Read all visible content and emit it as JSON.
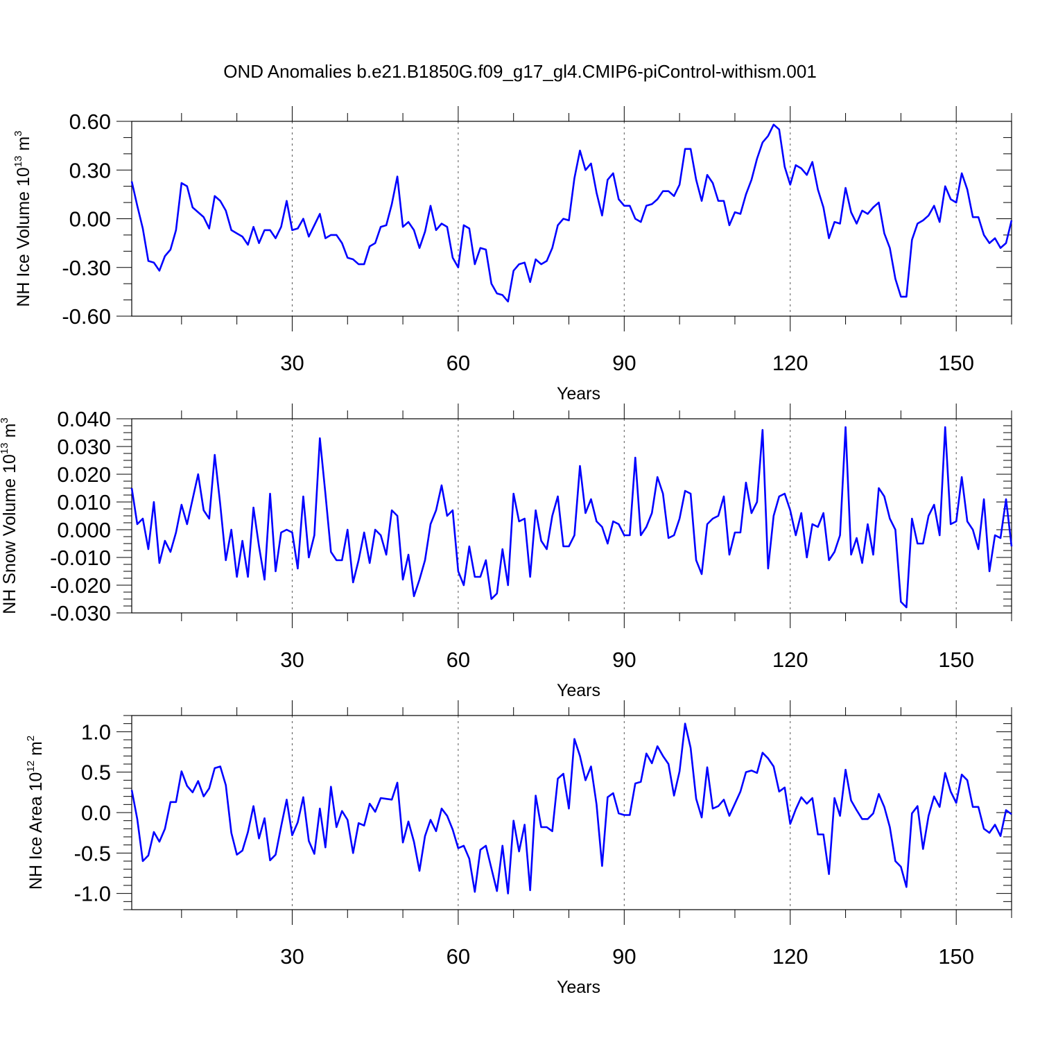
{
  "title": "OND Anomalies b.e21.B1850G.f09_g17_gl4.CMIP6-piControl-withism.001",
  "colors": {
    "series": "#0000ff",
    "axes": "#000000",
    "grid": "#555555",
    "background": "#ffffff"
  },
  "chart_data": [
    {
      "type": "line",
      "name": "ice-volume",
      "ylabel": {
        "base": "NH Ice Volume 10",
        "sup1": "13",
        "mid": " m",
        "sup2": "3"
      },
      "xlabel": "Years",
      "xlim": [
        1,
        160
      ],
      "ylim": [
        -0.6,
        0.6
      ],
      "xticks": [
        30,
        60,
        90,
        120,
        150
      ],
      "yticks": [
        -0.6,
        -0.3,
        0.0,
        0.3,
        0.6
      ],
      "ytick_labels": [
        "-0.60",
        "-0.30",
        "0.00",
        "0.30",
        "0.60"
      ],
      "grid": "vertical dashed at x ticks",
      "series": [
        {
          "x_start": 1,
          "values": [
            0.23,
            0.08,
            -0.06,
            -0.26,
            -0.27,
            -0.32,
            -0.23,
            -0.19,
            -0.07,
            0.22,
            0.2,
            0.07,
            0.04,
            0.01,
            -0.06,
            0.14,
            0.11,
            0.05,
            -0.07,
            -0.09,
            -0.11,
            -0.16,
            -0.05,
            -0.15,
            -0.07,
            -0.07,
            -0.12,
            -0.05,
            0.11,
            -0.07,
            -0.06,
            0.0,
            -0.11,
            -0.04,
            0.03,
            -0.12,
            -0.1,
            -0.1,
            -0.15,
            -0.24,
            -0.25,
            -0.28,
            -0.28,
            -0.17,
            -0.15,
            -0.05,
            -0.04,
            0.09,
            0.26,
            -0.05,
            -0.02,
            -0.07,
            -0.18,
            -0.08,
            0.08,
            -0.07,
            -0.03,
            -0.05,
            -0.24,
            -0.3,
            -0.04,
            -0.06,
            -0.28,
            -0.18,
            -0.19,
            -0.4,
            -0.46,
            -0.47,
            -0.51,
            -0.32,
            -0.28,
            -0.27,
            -0.39,
            -0.25,
            -0.28,
            -0.26,
            -0.18,
            -0.04,
            0.0,
            -0.01,
            0.25,
            0.42,
            0.3,
            0.34,
            0.16,
            0.02,
            0.24,
            0.28,
            0.12,
            0.08,
            0.08,
            0.0,
            -0.02,
            0.08,
            0.09,
            0.12,
            0.17,
            0.17,
            0.14,
            0.21,
            0.43,
            0.43,
            0.24,
            0.11,
            0.27,
            0.22,
            0.11,
            0.11,
            -0.04,
            0.04,
            0.03,
            0.15,
            0.24,
            0.37,
            0.47,
            0.51,
            0.58,
            0.55,
            0.32,
            0.21,
            0.33,
            0.31,
            0.27,
            0.35,
            0.18,
            0.07,
            -0.12,
            -0.02,
            -0.03,
            0.19,
            0.04,
            -0.03,
            0.05,
            0.03,
            0.07,
            0.1,
            -0.09,
            -0.18,
            -0.37,
            -0.48,
            -0.48,
            -0.13,
            -0.03,
            -0.01,
            0.02,
            0.08,
            -0.02,
            0.2,
            0.12,
            0.1,
            0.28,
            0.18,
            0.01,
            0.01,
            -0.1,
            -0.15,
            -0.12,
            -0.18,
            -0.15,
            -0.01
          ]
        }
      ]
    },
    {
      "type": "line",
      "name": "snow-volume",
      "ylabel": {
        "base": "NH Snow Volume 10",
        "sup1": "13",
        "mid": " m",
        "sup2": "3"
      },
      "xlabel": "Years",
      "xlim": [
        1,
        160
      ],
      "ylim": [
        -0.03,
        0.04
      ],
      "xticks": [
        30,
        60,
        90,
        120,
        150
      ],
      "yticks": [
        -0.03,
        -0.02,
        -0.01,
        0.0,
        0.01,
        0.02,
        0.03,
        0.04
      ],
      "ytick_labels": [
        "-0.030",
        "-0.020",
        "-0.010",
        "0.000",
        "0.010",
        "0.020",
        "0.030",
        "0.040"
      ],
      "grid": "vertical dashed at x ticks",
      "series": [
        {
          "x_start": 1,
          "values": [
            0.015,
            0.002,
            0.004,
            -0.007,
            0.01,
            -0.012,
            -0.004,
            -0.008,
            -0.001,
            0.009,
            0.002,
            0.011,
            0.02,
            0.007,
            0.004,
            0.027,
            0.009,
            -0.011,
            0.0,
            -0.017,
            -0.004,
            -0.017,
            0.008,
            -0.006,
            -0.018,
            0.013,
            -0.015,
            -0.001,
            0.0,
            -0.001,
            -0.014,
            0.012,
            -0.01,
            -0.002,
            0.033,
            0.013,
            -0.008,
            -0.011,
            -0.011,
            0.0,
            -0.019,
            -0.011,
            -0.001,
            -0.012,
            0.0,
            -0.002,
            -0.009,
            0.007,
            0.005,
            -0.018,
            -0.009,
            -0.024,
            -0.018,
            -0.011,
            0.002,
            0.007,
            0.016,
            0.005,
            0.007,
            -0.015,
            -0.02,
            -0.006,
            -0.017,
            -0.017,
            -0.011,
            -0.025,
            -0.023,
            -0.007,
            -0.02,
            0.013,
            0.003,
            0.004,
            -0.017,
            0.007,
            -0.004,
            -0.007,
            0.005,
            0.012,
            -0.006,
            -0.006,
            -0.002,
            0.023,
            0.006,
            0.011,
            0.003,
            0.001,
            -0.005,
            0.003,
            0.002,
            -0.002,
            -0.002,
            0.026,
            -0.002,
            0.001,
            0.006,
            0.019,
            0.013,
            -0.003,
            -0.002,
            0.004,
            0.014,
            0.013,
            -0.011,
            -0.016,
            0.002,
            0.004,
            0.005,
            0.012,
            -0.009,
            -0.001,
            -0.001,
            0.017,
            0.006,
            0.01,
            0.036,
            -0.014,
            0.005,
            0.012,
            0.013,
            0.007,
            -0.002,
            0.006,
            -0.01,
            0.002,
            0.001,
            0.006,
            -0.011,
            -0.008,
            -0.002,
            0.037,
            -0.009,
            -0.003,
            -0.012,
            0.002,
            -0.009,
            0.015,
            0.012,
            0.004,
            0.0,
            -0.026,
            -0.028,
            0.004,
            -0.005,
            -0.005,
            0.005,
            0.009,
            -0.002,
            0.037,
            0.002,
            0.003,
            0.019,
            0.003,
            0.0,
            -0.007,
            0.011,
            -0.015,
            -0.002,
            -0.003,
            0.011,
            -0.006
          ]
        }
      ]
    },
    {
      "type": "line",
      "name": "ice-area",
      "ylabel": {
        "base": "NH Ice Area 10",
        "sup1": "12",
        "mid": " m",
        "sup2": "2"
      },
      "xlabel": "Years",
      "xlim": [
        1,
        160
      ],
      "ylim": [
        -1.2,
        1.2
      ],
      "xticks": [
        30,
        60,
        90,
        120,
        150
      ],
      "yticks": [
        -1.0,
        -0.5,
        0.0,
        0.5,
        1.0
      ],
      "ytick_labels": [
        "-1.0",
        "-0.5",
        "0.0",
        "0.5",
        "1.0"
      ],
      "grid": "vertical dashed at x ticks",
      "series": [
        {
          "x_start": 1,
          "values": [
            0.28,
            -0.08,
            -0.6,
            -0.53,
            -0.24,
            -0.36,
            -0.2,
            0.13,
            0.13,
            0.51,
            0.33,
            0.25,
            0.39,
            0.2,
            0.3,
            0.55,
            0.57,
            0.34,
            -0.25,
            -0.52,
            -0.47,
            -0.24,
            0.08,
            -0.32,
            -0.07,
            -0.59,
            -0.52,
            -0.17,
            0.16,
            -0.28,
            -0.12,
            0.19,
            -0.35,
            -0.51,
            0.05,
            -0.43,
            0.32,
            -0.18,
            0.02,
            -0.09,
            -0.5,
            -0.13,
            -0.16,
            0.11,
            0.01,
            0.18,
            0.17,
            0.16,
            0.37,
            -0.37,
            -0.11,
            -0.36,
            -0.72,
            -0.29,
            -0.09,
            -0.23,
            0.05,
            -0.04,
            -0.21,
            -0.44,
            -0.41,
            -0.57,
            -0.98,
            -0.46,
            -0.41,
            -0.69,
            -0.97,
            -0.41,
            -1.0,
            -0.1,
            -0.48,
            -0.15,
            -0.96,
            0.21,
            -0.18,
            -0.18,
            -0.23,
            0.42,
            0.48,
            0.05,
            0.91,
            0.7,
            0.4,
            0.57,
            0.1,
            -0.66,
            0.19,
            0.24,
            -0.01,
            -0.03,
            -0.03,
            0.36,
            0.38,
            0.73,
            0.61,
            0.82,
            0.7,
            0.6,
            0.21,
            0.51,
            1.1,
            0.8,
            0.17,
            -0.06,
            0.56,
            0.05,
            0.08,
            0.16,
            -0.04,
            0.11,
            0.26,
            0.5,
            0.52,
            0.49,
            0.74,
            0.67,
            0.57,
            0.26,
            0.31,
            -0.14,
            0.04,
            0.19,
            0.11,
            0.18,
            -0.27,
            -0.27,
            -0.76,
            0.18,
            -0.04,
            0.53,
            0.15,
            0.03,
            -0.08,
            -0.08,
            -0.01,
            0.23,
            0.07,
            -0.18,
            -0.6,
            -0.67,
            -0.92,
            -0.01,
            0.08,
            -0.45,
            -0.04,
            0.2,
            0.07,
            0.49,
            0.26,
            0.12,
            0.47,
            0.4,
            0.07,
            0.07,
            -0.2,
            -0.25,
            -0.15,
            -0.29,
            0.03,
            -0.02
          ]
        }
      ]
    }
  ]
}
